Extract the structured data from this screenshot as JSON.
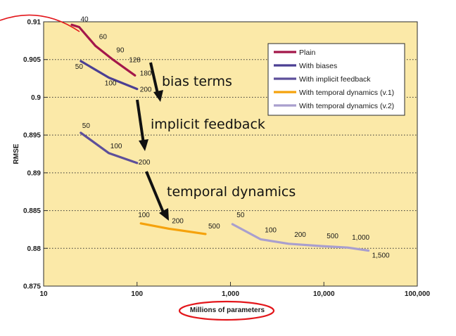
{
  "chart_data": {
    "type": "line",
    "xlabel": "Millions of parameters",
    "ylabel": "RMSE",
    "xscale": "log",
    "xlim": [
      10,
      100000
    ],
    "ylim": [
      0.875,
      0.91
    ],
    "x_ticks": [
      "10",
      "100",
      "1,000",
      "10,000",
      "100,000"
    ],
    "y_ticks": [
      "0.875",
      "0.88",
      "0.885",
      "0.89",
      "0.895",
      "0.9",
      "0.905",
      "0.91"
    ],
    "grid": "horizontal dotted",
    "legend_placement": "top-right",
    "series": [
      {
        "name": "Plain",
        "color": "#a3174a",
        "points": [
          {
            "x": 20,
            "y": 0.9096,
            "label": ""
          },
          {
            "x": 24,
            "y": 0.9093,
            "label": "40"
          },
          {
            "x": 36,
            "y": 0.9068,
            "label": "60"
          },
          {
            "x": 55,
            "y": 0.905,
            "label": "90"
          },
          {
            "x": 75,
            "y": 0.9038,
            "label": "128"
          },
          {
            "x": 95,
            "y": 0.9029,
            "label": "180"
          }
        ]
      },
      {
        "name": "With biases",
        "color": "#4b3f93",
        "points": [
          {
            "x": 25,
            "y": 0.9048,
            "label": "50"
          },
          {
            "x": 50,
            "y": 0.9026,
            "label": "100"
          },
          {
            "x": 100,
            "y": 0.9011,
            "label": "200"
          }
        ]
      },
      {
        "name": "With implicit feedback",
        "color": "#5d4f9a",
        "points": [
          {
            "x": 25,
            "y": 0.8953,
            "label": "50"
          },
          {
            "x": 50,
            "y": 0.8926,
            "label": "100"
          },
          {
            "x": 100,
            "y": 0.8913,
            "label": "200"
          }
        ]
      },
      {
        "name": "With temporal dynamics (v.1)",
        "color": "#f5a20c",
        "points": [
          {
            "x": 110,
            "y": 0.8833,
            "label": "100"
          },
          {
            "x": 220,
            "y": 0.8826,
            "label": "200"
          },
          {
            "x": 540,
            "y": 0.8819,
            "label": "500"
          }
        ]
      },
      {
        "name": "With temporal dynamics (v.2)",
        "color": "#a99fce",
        "points": [
          {
            "x": 1050,
            "y": 0.8832,
            "label": "50"
          },
          {
            "x": 2100,
            "y": 0.8812,
            "label": "100"
          },
          {
            "x": 4200,
            "y": 0.8806,
            "label": "200"
          },
          {
            "x": 9500,
            "y": 0.8803,
            "label": "500"
          },
          {
            "x": 18000,
            "y": 0.8801,
            "label": "1,000"
          },
          {
            "x": 30000,
            "y": 0.8797,
            "label": "1,500"
          }
        ]
      }
    ],
    "annotations": [
      "bias terms",
      "implicit feedback",
      "temporal dynamics"
    ]
  }
}
